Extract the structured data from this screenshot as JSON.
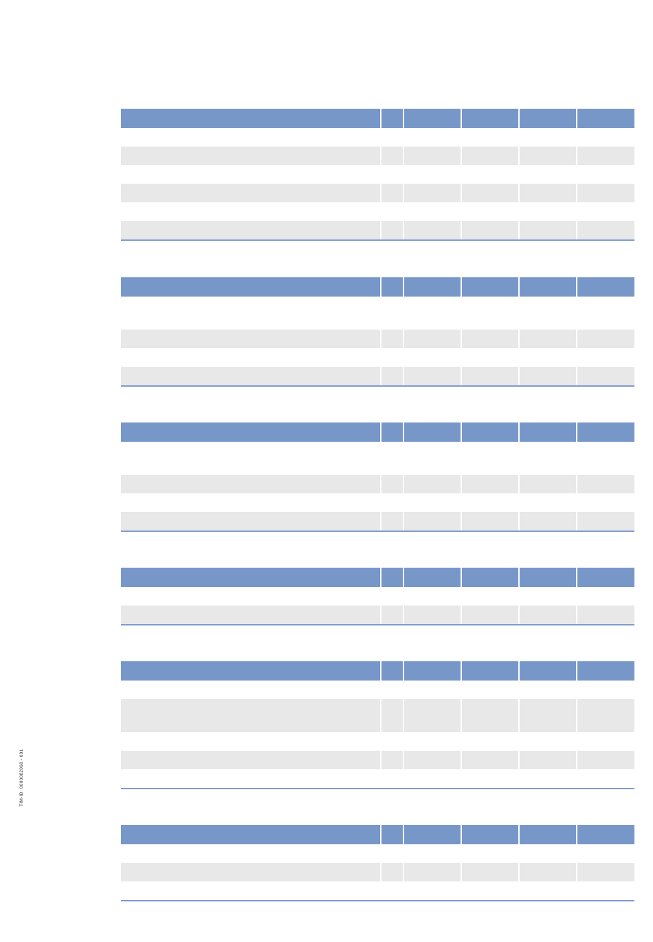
{
  "document": {
    "doc_id": "TIM-ID: 0000082068 - 001"
  },
  "tables": [
    {
      "id": "table-1",
      "rows": [
        "plain",
        "shaded",
        "plain",
        "shaded",
        "plain",
        "shaded"
      ]
    },
    {
      "id": "table-2",
      "rows": [
        "plain-tall",
        "shaded",
        "plain",
        "shaded"
      ]
    },
    {
      "id": "table-3",
      "rows": [
        "plain-tall",
        "shaded",
        "plain",
        "shaded"
      ]
    },
    {
      "id": "table-4",
      "rows": [
        "plain",
        "shaded"
      ]
    },
    {
      "id": "table-5",
      "rows": [
        "plain",
        "shaded-tall",
        "plain",
        "shaded",
        "plain"
      ]
    },
    {
      "id": "table-6",
      "rows": [
        "plain",
        "shaded",
        "plain"
      ]
    }
  ]
}
